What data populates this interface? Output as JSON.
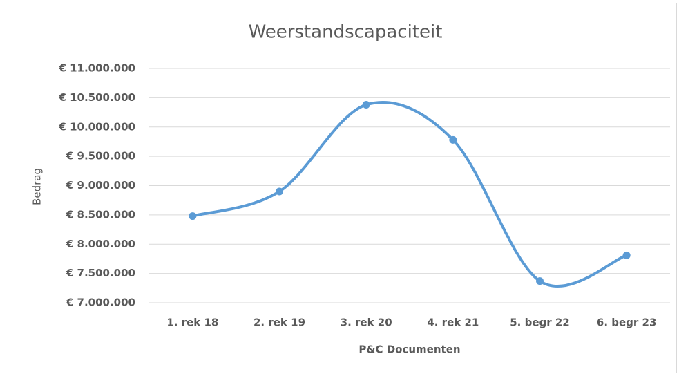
{
  "chart_data": {
    "type": "line",
    "title": "Weerstandscapaciteit",
    "x_label": "P&C Documenten",
    "y_label": "Bedrag",
    "categories": [
      "1. rek 18",
      "2. rek 19",
      "3. rek 20",
      "4. rek 21",
      "5. begr 22",
      "6. begr 23"
    ],
    "series": [
      {
        "name": "Weerstandscapaciteit",
        "color": "#5b9bd5",
        "values": [
          8480000,
          8900000,
          10380000,
          9780000,
          7370000,
          7810000
        ]
      }
    ],
    "smooth": true,
    "grid": true,
    "ylim": [
      7000000,
      11000000
    ],
    "yticks": [
      {
        "value": 7000000,
        "label": "€ 7.000.000"
      },
      {
        "value": 7500000,
        "label": "€ 7.500.000"
      },
      {
        "value": 8000000,
        "label": "€ 8.000.000"
      },
      {
        "value": 8500000,
        "label": "€ 8.500.000"
      },
      {
        "value": 9000000,
        "label": "€ 9.000.000"
      },
      {
        "value": 9500000,
        "label": "€ 9.500.000"
      },
      {
        "value": 10000000,
        "label": "€ 10.000.000"
      },
      {
        "value": 10500000,
        "label": "€ 10.500.000"
      },
      {
        "value": 11000000,
        "label": "€ 11.000.000"
      }
    ]
  }
}
